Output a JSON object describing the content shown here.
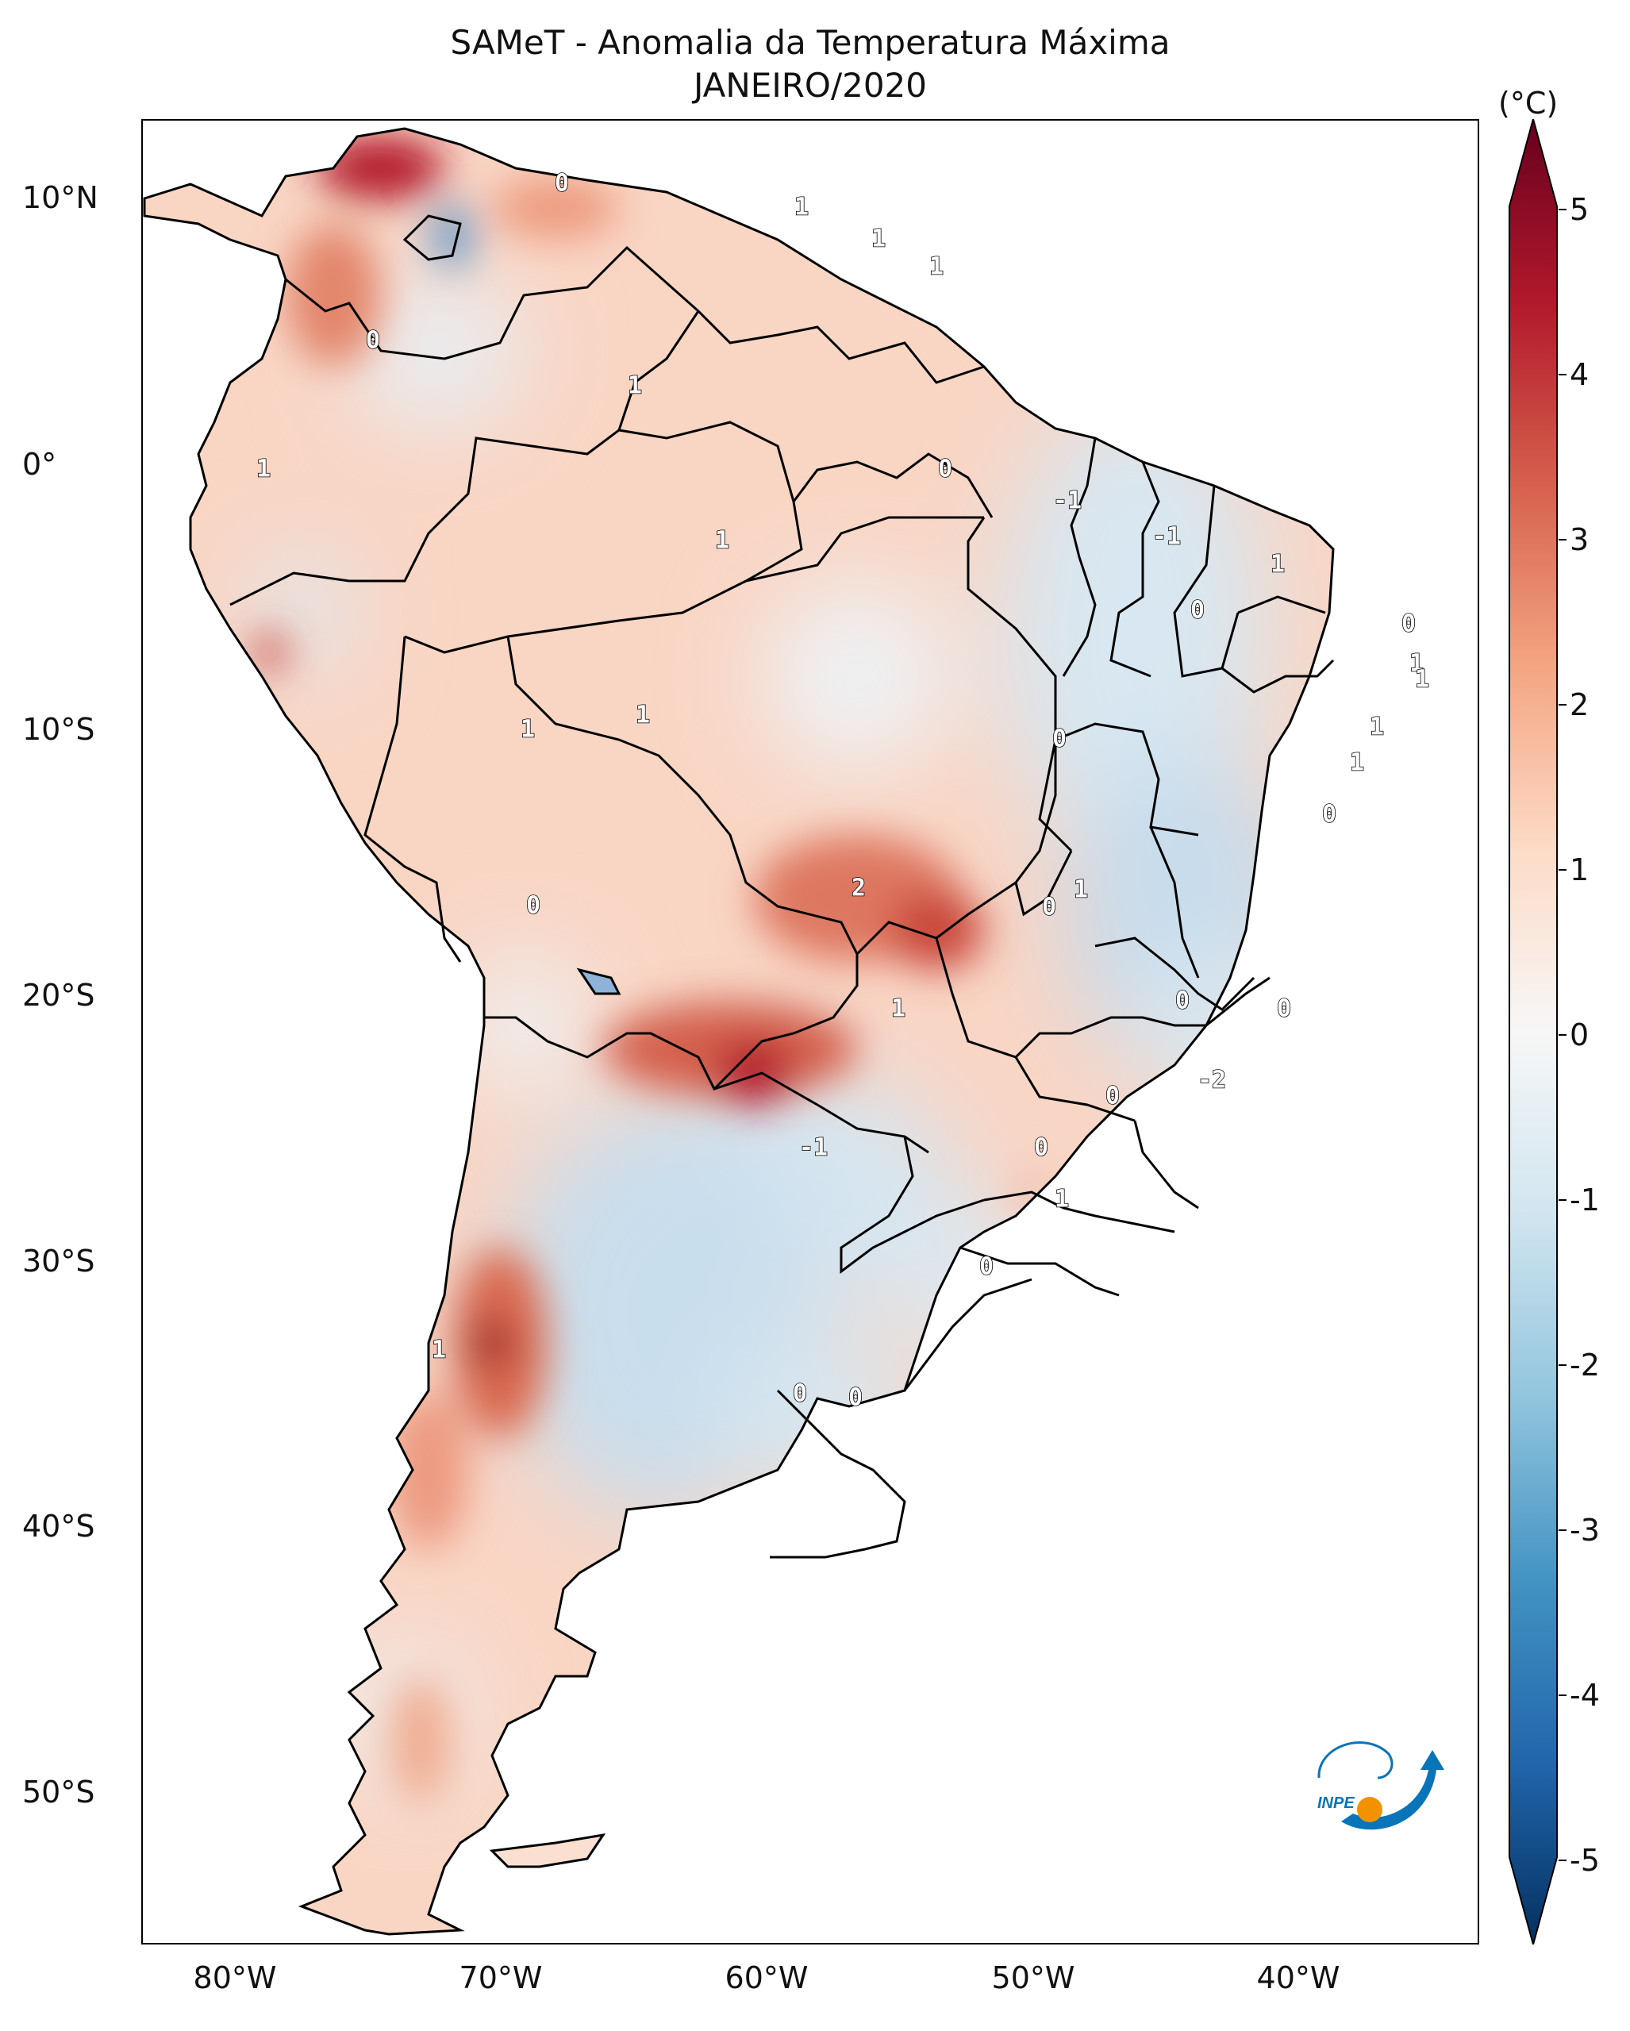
{
  "title": {
    "line1": "SAMeT - Anomalia da Temperatura Máxima",
    "line2": "JANEIRO/2020"
  },
  "axes": {
    "lat_labels": [
      "10°N",
      "0°",
      "10°S",
      "20°S",
      "30°S",
      "40°S",
      "50°S"
    ],
    "lon_labels": [
      "80°W",
      "70°W",
      "60°W",
      "50°W",
      "40°W"
    ]
  },
  "colorbar": {
    "unit": "(°C)",
    "ticks": [
      "5",
      "4",
      "3",
      "2",
      "1",
      "0",
      "-1",
      "-2",
      "-3",
      "-4",
      "-5"
    ],
    "colors": [
      "#67001f",
      "#b2182b",
      "#d6604d",
      "#f4a582",
      "#fddbc7",
      "#f7f7f7",
      "#d1e5f0",
      "#92c5de",
      "#4393c3",
      "#2166ac",
      "#053061"
    ]
  },
  "contour_labels": [
    "0",
    "0",
    "1",
    "1",
    "1",
    "1",
    "1",
    "0",
    "-1",
    "-1",
    "1",
    "1",
    "0",
    "0",
    "1",
    "1",
    "1",
    "1",
    "1",
    "1",
    "0",
    "0",
    "2",
    "1",
    "0",
    "0",
    "1",
    "0",
    "0",
    "-2",
    "0",
    "-1",
    "0",
    "1",
    "0",
    "1",
    "0",
    "0"
  ],
  "logo": {
    "text": "INPE",
    "colors": {
      "blue": "#0a74b8",
      "orange": "#f39200"
    }
  }
}
